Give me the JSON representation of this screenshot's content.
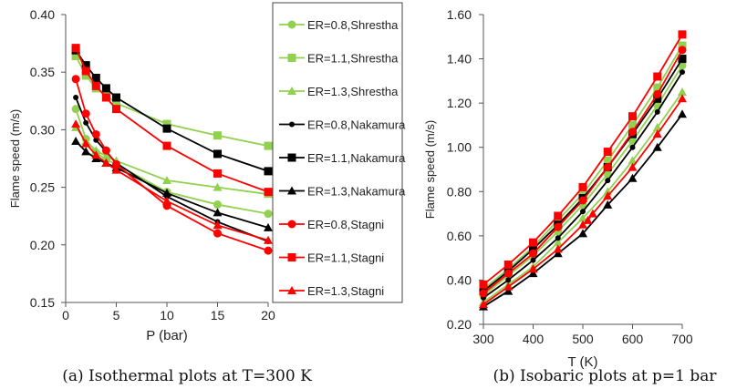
{
  "chart_data": [
    {
      "type": "line",
      "xlabel": "P (bar)",
      "ylabel": "Flame speed (m/s)",
      "xlim": [
        0,
        20
      ],
      "ylim": [
        0.15,
        0.4
      ],
      "xticks": [
        0,
        5,
        10,
        15,
        20
      ],
      "xtick_labels": [
        "0",
        "5",
        "10",
        "15",
        "20"
      ],
      "yticks": [
        0.15,
        0.2,
        0.25,
        0.3,
        0.35,
        0.4
      ],
      "ytick_labels": [
        "0.15",
        "0.20",
        "0.25",
        "0.30",
        "0.35",
        "0.40"
      ],
      "grid": false,
      "legend_position": "right",
      "caption": "(a) Isothermal plots at T=300 K",
      "series": [
        {
          "name": "ER=0.8,Shrestha",
          "color": "#92d050",
          "marker": "circle",
          "x": [
            1,
            2,
            3,
            4,
            5,
            10,
            15,
            20
          ],
          "y": [
            0.318,
            0.292,
            0.28,
            0.274,
            0.27,
            0.246,
            0.235,
            0.227
          ]
        },
        {
          "name": "ER=1.1,Shrestha",
          "color": "#92d050",
          "marker": "square",
          "x": [
            1,
            2,
            3,
            4,
            5,
            10,
            15,
            20
          ],
          "y": [
            0.364,
            0.347,
            0.336,
            0.33,
            0.323,
            0.305,
            0.295,
            0.286
          ]
        },
        {
          "name": "ER=1.3,Shrestha",
          "color": "#92d050",
          "marker": "triangle",
          "x": [
            1,
            2,
            3,
            4,
            5,
            10,
            15,
            20
          ],
          "y": [
            0.302,
            0.29,
            0.282,
            0.277,
            0.273,
            0.256,
            0.25,
            0.244
          ]
        },
        {
          "name": "ER=0.8,Nakamura",
          "color": "#000000",
          "marker": "dot",
          "x": [
            1,
            2,
            3,
            4,
            5,
            10,
            15,
            20
          ],
          "y": [
            0.328,
            0.306,
            0.291,
            0.281,
            0.271,
            0.242,
            0.22,
            0.203
          ]
        },
        {
          "name": "ER=1.1,Nakamura",
          "color": "#000000",
          "marker": "square",
          "x": [
            1,
            2,
            3,
            4,
            5,
            10,
            15,
            20
          ],
          "y": [
            0.369,
            0.356,
            0.345,
            0.336,
            0.328,
            0.301,
            0.279,
            0.264
          ]
        },
        {
          "name": "ER=1.3,Nakamura",
          "color": "#000000",
          "marker": "triangle",
          "x": [
            1,
            2,
            3,
            4,
            5,
            10,
            15,
            20
          ],
          "y": [
            0.29,
            0.281,
            0.275,
            0.271,
            0.267,
            0.245,
            0.228,
            0.215
          ]
        },
        {
          "name": "ER=0.8,Stagni",
          "color": "#ff0000",
          "marker": "circle",
          "x": [
            1,
            2,
            3,
            4,
            5,
            10,
            15,
            20
          ],
          "y": [
            0.344,
            0.314,
            0.296,
            0.282,
            0.27,
            0.234,
            0.21,
            0.195
          ]
        },
        {
          "name": "ER=1.1,Stagni",
          "color": "#ff0000",
          "marker": "square",
          "x": [
            1,
            2,
            3,
            4,
            5,
            10,
            15,
            20
          ],
          "y": [
            0.371,
            0.351,
            0.338,
            0.328,
            0.318,
            0.286,
            0.262,
            0.246
          ]
        },
        {
          "name": "ER=1.3,Stagni",
          "color": "#ff0000",
          "marker": "triangle",
          "x": [
            1,
            2,
            3,
            4,
            5,
            10,
            15,
            20
          ],
          "y": [
            0.305,
            0.288,
            0.278,
            0.271,
            0.265,
            0.238,
            0.217,
            0.204
          ]
        }
      ]
    },
    {
      "type": "line",
      "xlabel": "T (K)",
      "ylabel": "Flame speed (m/s)",
      "xlim": [
        300,
        700
      ],
      "ylim": [
        0.2,
        1.6
      ],
      "xticks": [
        300,
        400,
        500,
        600,
        700
      ],
      "xtick_labels": [
        "300",
        "400",
        "500",
        "600",
        "700"
      ],
      "yticks": [
        0.2,
        0.4,
        0.6,
        0.8,
        1.0,
        1.2,
        1.4,
        1.6
      ],
      "ytick_labels": [
        "0.20",
        "0.40",
        "0.60",
        "0.80",
        "1.00",
        "1.20",
        "1.40",
        "1.60"
      ],
      "grid": false,
      "caption": "(b) Isobaric plots at p=1 bar",
      "series": [
        {
          "name": "ER=0.8,Shrestha",
          "color": "#92d050",
          "marker": "circle",
          "x": [
            300,
            350,
            400,
            450,
            500,
            550,
            600,
            650,
            700
          ],
          "y": [
            0.33,
            0.42,
            0.51,
            0.62,
            0.74,
            0.88,
            1.03,
            1.19,
            1.37
          ]
        },
        {
          "name": "ER=1.1,Shrestha",
          "color": "#92d050",
          "marker": "square",
          "x": [
            300,
            350,
            400,
            450,
            500,
            550,
            600,
            650,
            700
          ],
          "y": [
            0.36,
            0.45,
            0.55,
            0.67,
            0.79,
            0.94,
            1.1,
            1.27,
            1.46
          ]
        },
        {
          "name": "ER=1.3,Shrestha",
          "color": "#92d050",
          "marker": "triangle",
          "x": [
            300,
            350,
            400,
            450,
            500,
            550,
            600,
            650,
            700
          ],
          "y": [
            0.3,
            0.38,
            0.46,
            0.57,
            0.68,
            0.8,
            0.94,
            1.09,
            1.25
          ]
        },
        {
          "name": "ER=0.8,Nakamura",
          "color": "#000000",
          "marker": "dot",
          "x": [
            300,
            350,
            400,
            450,
            500,
            550,
            600,
            650,
            700
          ],
          "y": [
            0.32,
            0.4,
            0.49,
            0.59,
            0.71,
            0.85,
            1.0,
            1.16,
            1.34
          ]
        },
        {
          "name": "ER=1.1,Nakamura",
          "color": "#000000",
          "marker": "square",
          "x": [
            300,
            350,
            400,
            450,
            500,
            550,
            600,
            650,
            700
          ],
          "y": [
            0.35,
            0.44,
            0.54,
            0.65,
            0.77,
            0.91,
            1.06,
            1.22,
            1.4
          ]
        },
        {
          "name": "ER=1.3,Nakamura",
          "color": "#000000",
          "marker": "triangle",
          "x": [
            300,
            350,
            400,
            450,
            500,
            550,
            600,
            650,
            700
          ],
          "y": [
            0.28,
            0.35,
            0.43,
            0.52,
            0.61,
            0.74,
            0.86,
            1.0,
            1.15
          ]
        },
        {
          "name": "ER=0.8,Stagni",
          "color": "#ff0000",
          "marker": "circle",
          "x": [
            300,
            350,
            400,
            450,
            500,
            550,
            600,
            650,
            700
          ],
          "y": [
            0.34,
            0.43,
            0.52,
            0.64,
            0.76,
            0.91,
            1.07,
            1.24,
            1.44
          ]
        },
        {
          "name": "ER=1.1,Stagni",
          "color": "#ff0000",
          "marker": "square",
          "x": [
            300,
            350,
            400,
            450,
            500,
            550,
            600,
            650,
            700
          ],
          "y": [
            0.38,
            0.47,
            0.57,
            0.69,
            0.82,
            0.98,
            1.14,
            1.32,
            1.51
          ]
        },
        {
          "name": "ER=1.3,Stagni",
          "color": "#ff0000",
          "marker": "triangle",
          "x": [
            300,
            350,
            400,
            450,
            500,
            510,
            520,
            550,
            600,
            650,
            700
          ],
          "y": [
            0.29,
            0.37,
            0.45,
            0.54,
            0.65,
            0.67,
            0.7,
            0.78,
            0.91,
            1.06,
            1.22
          ]
        }
      ]
    }
  ]
}
